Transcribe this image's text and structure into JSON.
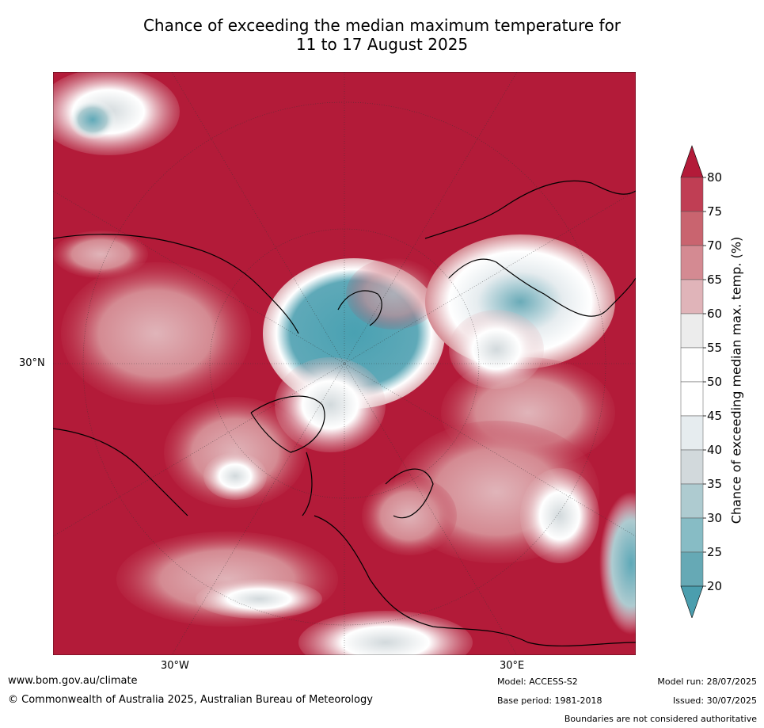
{
  "title": {
    "line1": "Chance of exceeding the median maximum temperature for",
    "line2": "11 to 17 August 2025"
  },
  "map": {
    "projection": "north polar stereographic",
    "lat_label": "30°N",
    "lon_labels": [
      "30°W",
      "30°E"
    ],
    "background_color": "#b31b39"
  },
  "colorbar": {
    "label": "Chance of exceeding median max. temp. (%)",
    "ticks": [
      "80",
      "75",
      "70",
      "65",
      "60",
      "55",
      "50",
      "45",
      "40",
      "35",
      "30",
      "25",
      "20"
    ],
    "colors": [
      "#c03e54",
      "#c9646f",
      "#d48a92",
      "#e0b4b9",
      "#ececec",
      "#ffffff",
      "#ffffff",
      "#e6ecef",
      "#d2d9dc",
      "#aecbd0",
      "#87bcc5",
      "#66a9b5"
    ],
    "top_color": "#b31b39",
    "bottom_color": "#4b9eae"
  },
  "footer": {
    "website": "www.bom.gov.au/climate",
    "copyright": "© Commonwealth of Australia 2025, Australian Bureau of Meteorology",
    "model": "Model: ACCESS-S2",
    "model_run": "Model run: 28/07/2025",
    "base_period": "Base period: 1981-2018",
    "issued": "Issued: 30/07/2025",
    "disclaimer": "Boundaries are not considered authoritative"
  }
}
